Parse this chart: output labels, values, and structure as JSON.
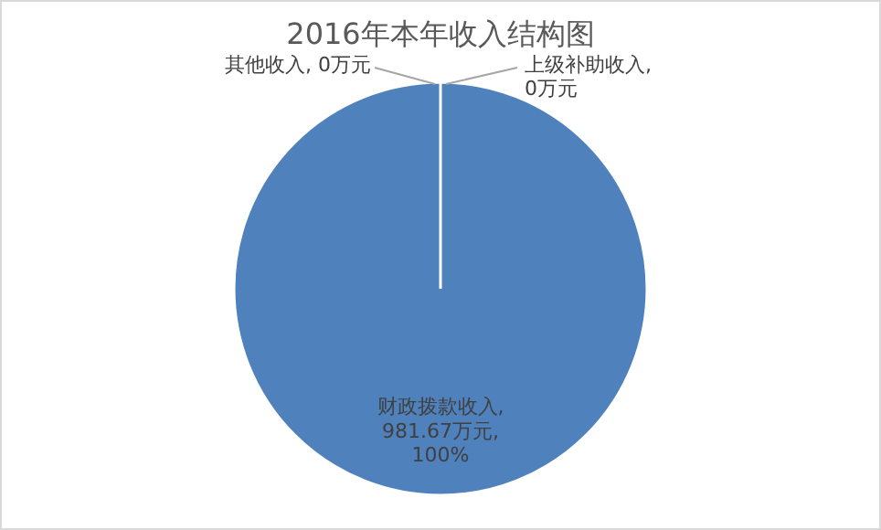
{
  "chart_data": {
    "type": "pie",
    "title": "2016年本年收入结构图",
    "categories": [
      "财政拨款收入",
      "上级补助收入",
      "其他收入"
    ],
    "values": [
      981.67,
      0,
      0
    ],
    "colors": [
      "#4f81bd",
      "#c0504d",
      "#9bbb59"
    ],
    "value_labels": [
      ", 981.67万元, 100%",
      ", 0万元",
      ", 0万元"
    ]
  }
}
